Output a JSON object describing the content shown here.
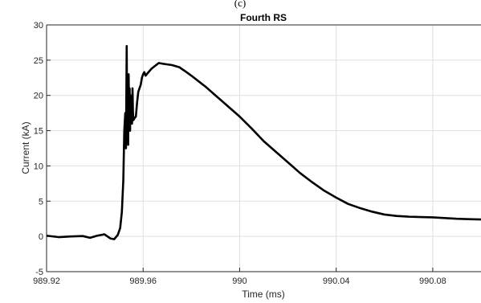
{
  "header": {
    "text": "(c)"
  },
  "chart_data": {
    "type": "line",
    "title": "Fourth RS",
    "xlabel": "Time (ms)",
    "ylabel": "Current (kA)",
    "xlim": [
      989.92,
      990.1
    ],
    "ylim": [
      -5,
      30
    ],
    "x_ticks": [
      989.92,
      989.96,
      990,
      990.04,
      990.08
    ],
    "x_tick_labels": [
      "989.92",
      "989.96",
      "990",
      "990.04",
      "990.08"
    ],
    "y_ticks": [
      -5,
      0,
      5,
      10,
      15,
      20,
      25,
      30
    ],
    "y_tick_labels": [
      "-5",
      "0",
      "5",
      "10",
      "15",
      "20",
      "25",
      "30"
    ],
    "grid": true,
    "colors": {
      "line": "#000000",
      "grid": "#dfdfdf",
      "axis": "#262626"
    },
    "series": [
      {
        "x": [
          989.92,
          989.925,
          989.93,
          989.935,
          989.938,
          989.941,
          989.944,
          989.9465,
          989.948,
          989.9495,
          989.9505,
          989.9512,
          989.9518,
          989.9522,
          989.9526,
          989.9529,
          989.9532,
          989.9534,
          989.9536,
          989.9538,
          989.954,
          989.9542,
          989.9544,
          989.9546,
          989.9548,
          989.955,
          989.9552,
          989.9554,
          989.9556,
          989.9558,
          989.956,
          989.9565,
          989.957,
          989.9575,
          989.958,
          989.9585,
          989.959,
          989.9595,
          989.96,
          989.9605,
          989.961,
          989.962,
          989.9635,
          989.965,
          989.9665,
          989.968,
          989.97,
          989.972,
          989.975,
          989.978,
          989.98,
          989.983,
          989.986,
          989.99,
          989.995,
          990.0,
          990.005,
          990.01,
          990.015,
          990.02,
          990.025,
          990.03,
          990.035,
          990.04,
          990.045,
          990.05,
          990.055,
          990.06,
          990.065,
          990.07,
          990.075,
          990.08,
          990.085,
          990.09,
          990.095,
          990.1
        ],
        "y": [
          0.1,
          -0.1,
          0.0,
          0.05,
          -0.2,
          0.1,
          0.3,
          -0.3,
          -0.4,
          0.2,
          1.2,
          3.5,
          8.0,
          15.0,
          17.5,
          12.5,
          27.0,
          14.0,
          18.0,
          13.0,
          23.0,
          17.0,
          21.0,
          15.0,
          20.0,
          17.0,
          19.0,
          16.0,
          21.0,
          17.5,
          16.5,
          16.8,
          17.0,
          19.0,
          20.5,
          21.0,
          21.5,
          22.5,
          23.0,
          23.3,
          22.8,
          23.2,
          23.8,
          24.2,
          24.6,
          24.5,
          24.4,
          24.3,
          24.0,
          23.3,
          22.8,
          22.0,
          21.2,
          20.0,
          18.5,
          17.0,
          15.3,
          13.5,
          12.0,
          10.5,
          9.0,
          7.7,
          6.5,
          5.5,
          4.6,
          4.0,
          3.5,
          3.1,
          2.9,
          2.8,
          2.75,
          2.7,
          2.6,
          2.5,
          2.45,
          2.4
        ]
      }
    ]
  }
}
